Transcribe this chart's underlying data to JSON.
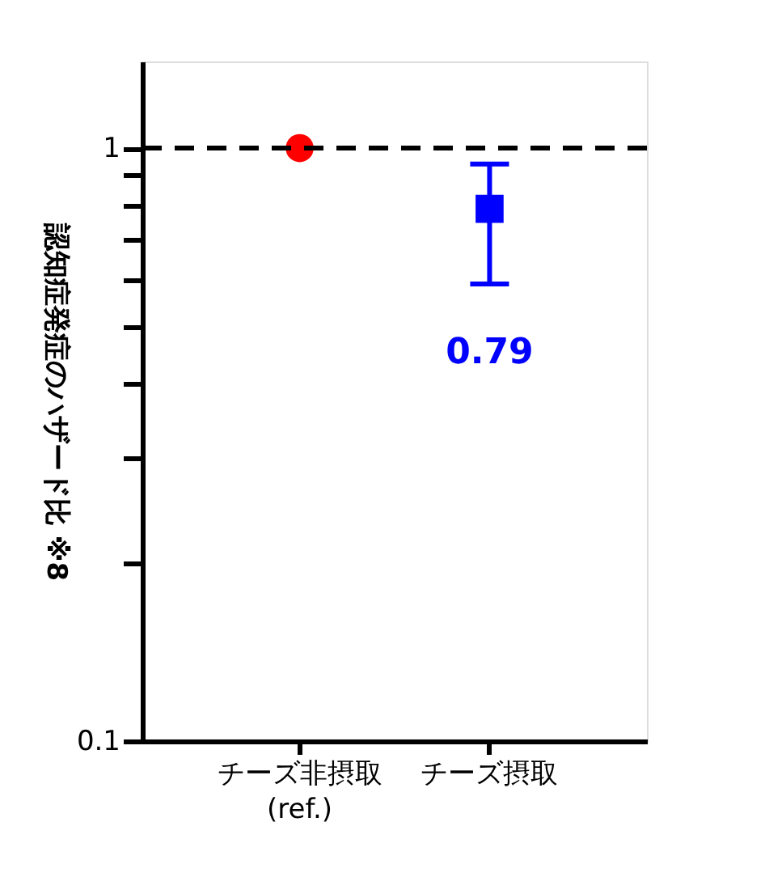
{
  "chart_data": {
    "type": "scatter",
    "ylabel": "認知症発症のハザード比 ※8",
    "categories": [
      "チーズ非摂取\n(ref.)",
      "チーズ摂取"
    ],
    "series": [
      {
        "x": [
          "チーズ非摂取\n(ref.)"
        ],
        "values": [
          1
        ],
        "color": "#ff0000",
        "marker": "circle"
      },
      {
        "x": [
          "チーズ摂取"
        ],
        "values": [
          0.79
        ],
        "errors": [
          [
            0.59,
            0.94
          ]
        ],
        "color": "#0000ff",
        "marker": "square",
        "value_labels": [
          "0.79"
        ]
      }
    ],
    "log": "y",
    "ylim": [
      0.1,
      1.4
    ],
    "yticks": [
      0.1,
      {
        "value": 0.2,
        "label": null
      },
      {
        "value": 0.3,
        "label": null
      },
      {
        "value": 0.4,
        "label": null
      },
      {
        "value": 0.5,
        "label": null
      },
      {
        "value": 0.6,
        "label": null
      },
      {
        "value": 0.7,
        "label": null
      },
      {
        "value": 0.8,
        "label": null
      },
      {
        "value": 0.9,
        "label": null
      },
      1
    ],
    "ref_lines": [
      {
        "axis": "y",
        "value": 1,
        "color": "#000000",
        "line_style": "dashed"
      }
    ],
    "grid": false
  }
}
